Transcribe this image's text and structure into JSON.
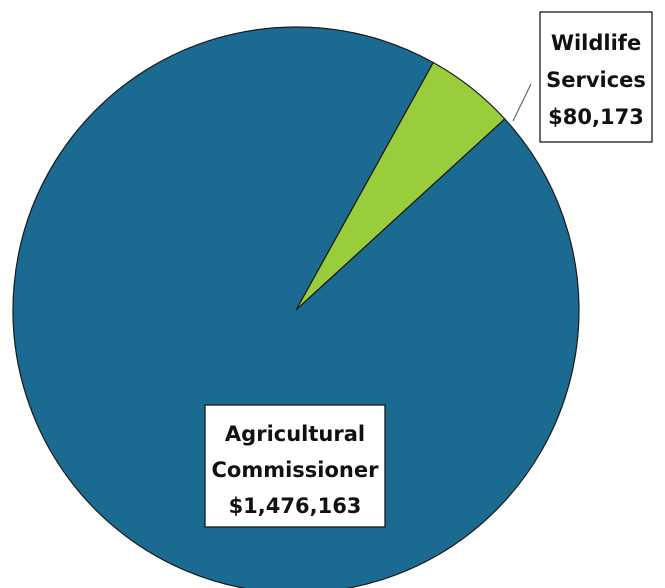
{
  "chart_data": {
    "type": "pie",
    "title": "",
    "slices": [
      {
        "name_lines": [
          "Wildlife",
          "Services"
        ],
        "value_label": "$80,173",
        "value": 80173,
        "color": "#9ACD3C"
      },
      {
        "name_lines": [
          "Agricultural",
          "Commissioner"
        ],
        "value_label": "$1,476,163",
        "value": 1476163,
        "color": "#1B6A92"
      }
    ],
    "legend": "none"
  }
}
